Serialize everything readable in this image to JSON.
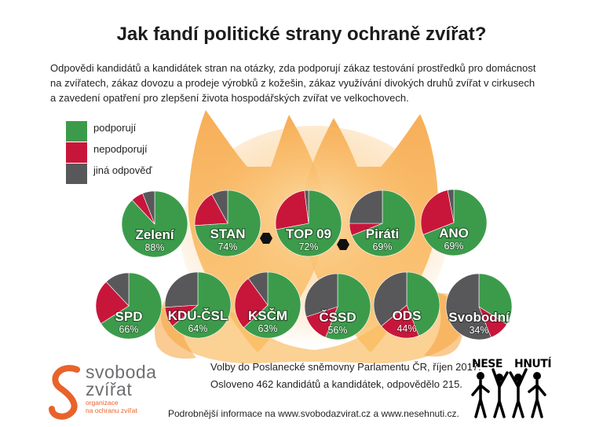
{
  "title": "Jak fandí politické strany ochraně zvířat?",
  "intro": [
    "Odpovědi kandidátů a kandidátek stran na otázky, zda podporují zákaz testování prostředků pro domácnost",
    "na zvířatech, zákaz dovozu a prodeje výrobků z kožešin, zákaz využívání divokých druhů zvířat v cirkusech",
    "a zavedení opatření pro zlepšení života hospodářských zvířat ve velkochovech."
  ],
  "chart_data": {
    "type": "pie",
    "legend": [
      {
        "label": "podporují",
        "color": "#3c9b4b"
      },
      {
        "label": "nepodporují",
        "color": "#c8163b"
      },
      {
        "label": "jiná odpověď",
        "color": "#58585a"
      }
    ],
    "pies": [
      {
        "name": "Zelení",
        "label": "88%",
        "values": [
          88,
          6,
          6
        ]
      },
      {
        "name": "STAN",
        "label": "74%",
        "values": [
          74,
          18,
          8
        ]
      },
      {
        "name": "TOP 09",
        "label": "72%",
        "values": [
          72,
          26,
          2
        ]
      },
      {
        "name": "Piráti",
        "label": "69%",
        "values": [
          69,
          6,
          25
        ]
      },
      {
        "name": "ANO",
        "label": "69%",
        "values": [
          69,
          28,
          3
        ]
      },
      {
        "name": "SPD",
        "label": "66%",
        "values": [
          66,
          22,
          12
        ]
      },
      {
        "name": "KDU-ČSL",
        "label": "64%",
        "values": [
          64,
          10,
          26
        ]
      },
      {
        "name": "KSČM",
        "label": "63%",
        "values": [
          63,
          27,
          10
        ]
      },
      {
        "name": "ČSSD",
        "label": "56%",
        "values": [
          56,
          14,
          30
        ]
      },
      {
        "name": "ODS",
        "label": "44%",
        "values": [
          44,
          20,
          36
        ]
      },
      {
        "name": "Svobodní",
        "label": "34%",
        "values": [
          34,
          10,
          56
        ]
      }
    ]
  },
  "footer": {
    "election": "Volby do Poslanecké sněmovny Parlamentu ČR, říjen 2017.",
    "response": "Osloveno 462 kandidátů a kandidátek, odpovědělo 215.",
    "more_info": "Podrobnější informace na www.svobodazvirat.cz a www.nesehnuti.cz."
  },
  "logos": {
    "svoboda": {
      "line1": "svoboda",
      "line2": "zvířat",
      "tagline1": "organizace",
      "tagline2": "na ochranu zvířat",
      "color": "#e8632b"
    },
    "nesehnuti": {
      "part1": "NESE",
      "part2": "HNUTÍ"
    }
  }
}
